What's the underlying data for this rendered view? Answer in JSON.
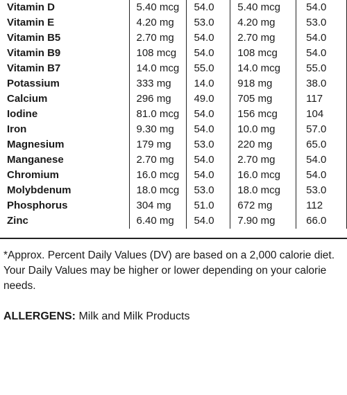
{
  "nutrients": [
    {
      "name": "Vitamin D",
      "amount": "5.40 mcg",
      "dv": "54.0",
      "amount2": "5.40 mcg",
      "dv2": "54.0"
    },
    {
      "name": "Vitamin E",
      "amount": "4.20 mg",
      "dv": "53.0",
      "amount2": "4.20 mg",
      "dv2": "53.0"
    },
    {
      "name": "Vitamin B5",
      "amount": "2.70 mg",
      "dv": "54.0",
      "amount2": "2.70 mg",
      "dv2": "54.0"
    },
    {
      "name": "Vitamin B9",
      "amount": "108 mcg",
      "dv": "54.0",
      "amount2": "108 mcg",
      "dv2": "54.0"
    },
    {
      "name": "Vitamin B7",
      "amount": "14.0 mcg",
      "dv": "55.0",
      "amount2": "14.0 mcg",
      "dv2": "55.0"
    },
    {
      "name": "Potassium",
      "amount": "333 mg",
      "dv": "14.0",
      "amount2": "918 mg",
      "dv2": "38.0"
    },
    {
      "name": "Calcium",
      "amount": "296 mg",
      "dv": "49.0",
      "amount2": "705 mg",
      "dv2": "117"
    },
    {
      "name": "Iodine",
      "amount": "81.0 mcg",
      "dv": "54.0",
      "amount2": "156 mcg",
      "dv2": "104"
    },
    {
      "name": "Iron",
      "amount": "9.30 mg",
      "dv": "54.0",
      "amount2": "10.0 mg",
      "dv2": "57.0"
    },
    {
      "name": "Magnesium",
      "amount": "179 mg",
      "dv": "53.0",
      "amount2": "220 mg",
      "dv2": "65.0"
    },
    {
      "name": "Manganese",
      "amount": "2.70 mg",
      "dv": "54.0",
      "amount2": "2.70 mg",
      "dv2": "54.0"
    },
    {
      "name": "Chromium",
      "amount": "16.0 mcg",
      "dv": "54.0",
      "amount2": "16.0 mcg",
      "dv2": "54.0"
    },
    {
      "name": "Molybdenum",
      "amount": "18.0 mcg",
      "dv": "53.0",
      "amount2": "18.0 mcg",
      "dv2": "53.0"
    },
    {
      "name": "Phosphorus",
      "amount": "304 mg",
      "dv": "51.0",
      "amount2": "672 mg",
      "dv2": "112"
    },
    {
      "name": "Zinc",
      "amount": "6.40 mg",
      "dv": "54.0",
      "amount2": "7.90 mg",
      "dv2": "66.0"
    }
  ],
  "footnote": "*Approx. Percent Daily Values (DV) are based on a 2,000 calorie diet. Your Daily Values may be higher or lower depending on your calorie needs.",
  "allergens": {
    "label": "ALLERGENS:",
    "value": "Milk and Milk Products"
  }
}
